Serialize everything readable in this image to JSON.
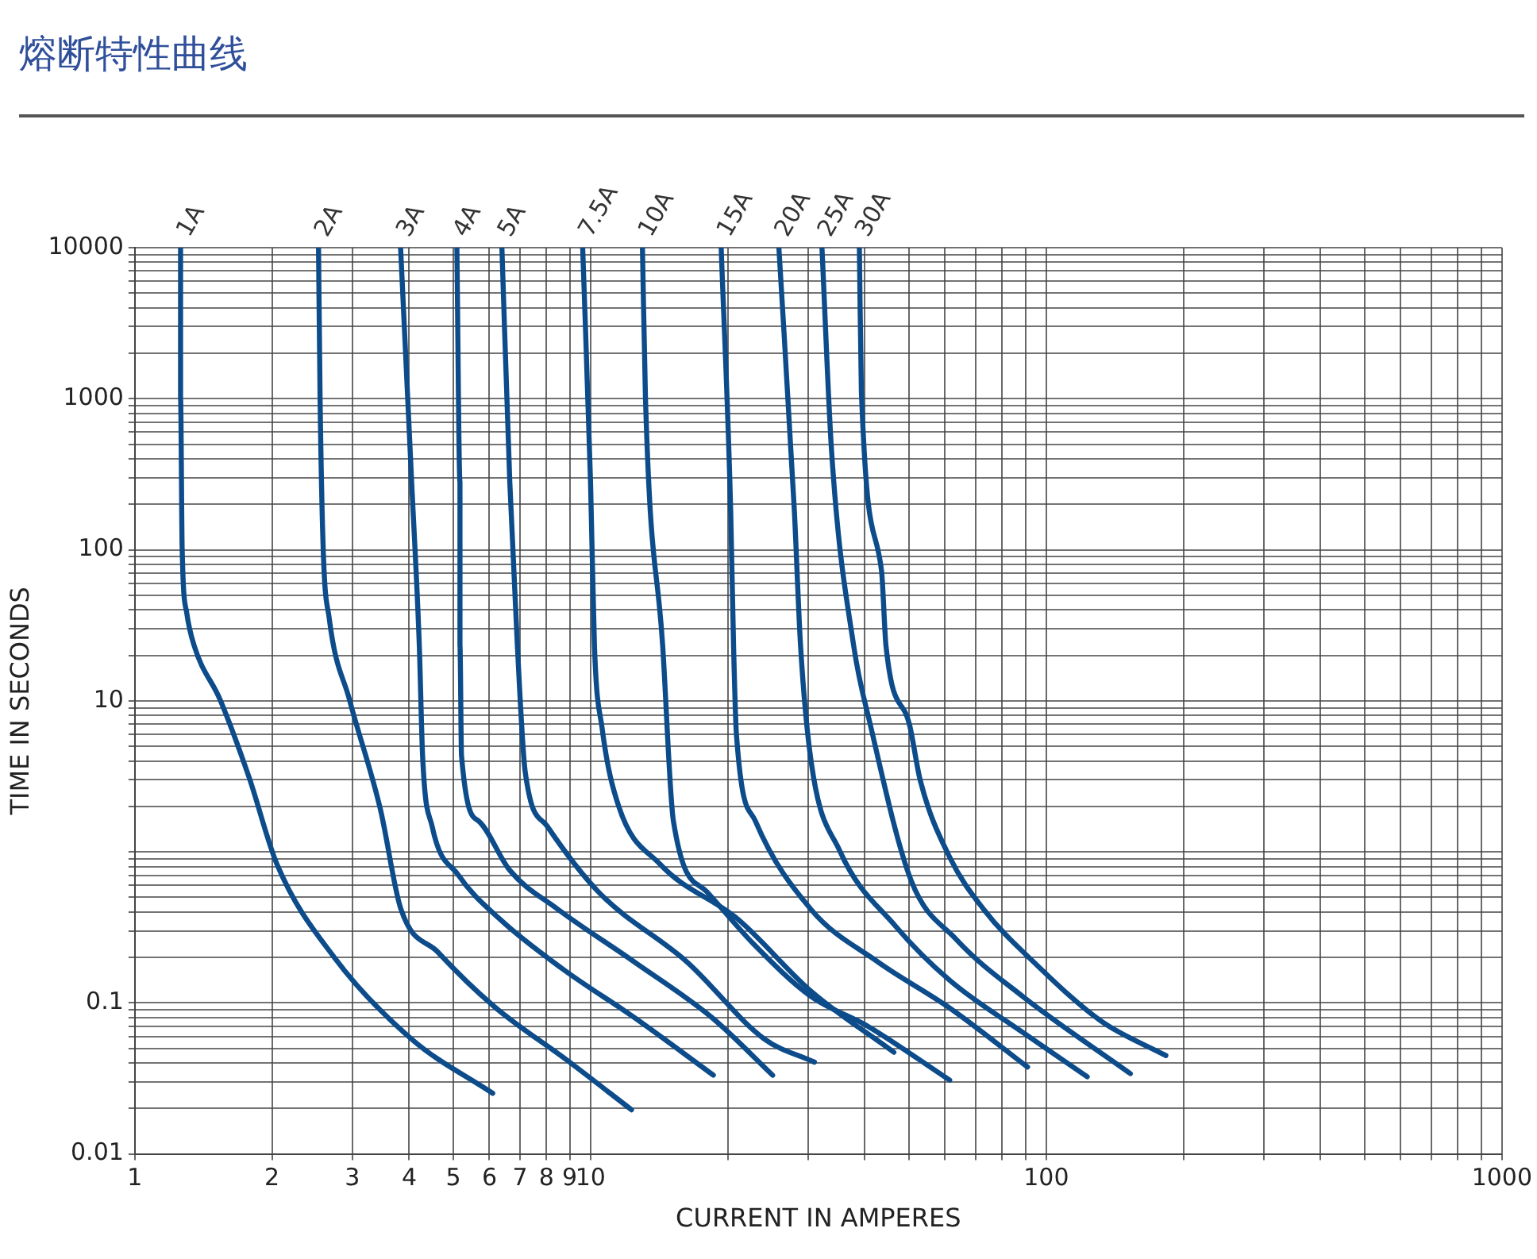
{
  "chart_data": {
    "type": "line",
    "title": "熔断特性曲线",
    "xlabel": "CURRENT IN AMPERES",
    "ylabel": "TIME IN SECONDS",
    "log": "xy",
    "grid": true,
    "legend": false,
    "xlim": [
      1,
      1000
    ],
    "ylim": [
      0.01,
      10000
    ],
    "xticks": [
      1,
      2,
      3,
      4,
      5,
      6,
      7,
      8,
      9,
      10,
      {
        "value": 20,
        "label": null
      },
      {
        "value": 30,
        "label": null
      },
      {
        "value": 40,
        "label": null
      },
      {
        "value": 50,
        "label": null
      },
      {
        "value": 60,
        "label": null
      },
      {
        "value": 70,
        "label": null
      },
      {
        "value": 80,
        "label": null
      },
      {
        "value": 90,
        "label": null
      },
      100,
      {
        "value": 200,
        "label": null
      },
      {
        "value": 300,
        "label": null
      },
      {
        "value": 400,
        "label": null
      },
      {
        "value": 500,
        "label": null
      },
      {
        "value": 600,
        "label": null
      },
      {
        "value": 700,
        "label": null
      },
      {
        "value": 800,
        "label": null
      },
      {
        "value": 900,
        "label": null
      },
      1000
    ],
    "yticks": [
      0.01,
      {
        "value": 0.02,
        "label": null
      },
      {
        "value": 0.03,
        "label": null
      },
      {
        "value": 0.04,
        "label": null
      },
      {
        "value": 0.05,
        "label": null
      },
      {
        "value": 0.06,
        "label": null
      },
      {
        "value": 0.07,
        "label": null
      },
      {
        "value": 0.08,
        "label": null
      },
      {
        "value": 0.09,
        "label": null
      },
      0.1,
      {
        "value": 0.2,
        "label": null
      },
      {
        "value": 0.3,
        "label": null
      },
      {
        "value": 0.4,
        "label": null
      },
      {
        "value": 0.5,
        "label": null
      },
      {
        "value": 0.6,
        "label": null
      },
      {
        "value": 0.7,
        "label": null
      },
      {
        "value": 0.8,
        "label": null
      },
      {
        "value": 0.9,
        "label": null
      },
      {
        "value": 1,
        "label": null
      },
      {
        "value": 2,
        "label": null
      },
      {
        "value": 3,
        "label": null
      },
      {
        "value": 4,
        "label": null
      },
      {
        "value": 5,
        "label": null
      },
      {
        "value": 6,
        "label": null
      },
      {
        "value": 7,
        "label": null
      },
      {
        "value": 8,
        "label": null
      },
      {
        "value": 9,
        "label": null
      },
      10,
      {
        "value": 20,
        "label": null
      },
      {
        "value": 30,
        "label": null
      },
      {
        "value": 40,
        "label": null
      },
      {
        "value": 50,
        "label": null
      },
      {
        "value": 60,
        "label": null
      },
      {
        "value": 70,
        "label": null
      },
      {
        "value": 80,
        "label": null
      },
      {
        "value": 90,
        "label": null
      },
      100,
      {
        "value": 200,
        "label": null
      },
      {
        "value": 300,
        "label": null
      },
      {
        "value": 400,
        "label": null
      },
      {
        "value": 500,
        "label": null
      },
      {
        "value": 600,
        "label": null
      },
      {
        "value": 700,
        "label": null
      },
      {
        "value": 800,
        "label": null
      },
      {
        "value": 900,
        "label": null
      },
      1000,
      {
        "value": 2000,
        "label": null
      },
      {
        "value": 3000,
        "label": null
      },
      {
        "value": 4000,
        "label": null
      },
      {
        "value": 5000,
        "label": null
      },
      {
        "value": 6000,
        "label": null
      },
      {
        "value": 7000,
        "label": null
      },
      {
        "value": 8000,
        "label": null
      },
      {
        "value": 9000,
        "label": null
      },
      10000
    ],
    "series": [
      {
        "name": "1A",
        "color": "#0d4c8b",
        "x": [
          1.26,
          1.26,
          1.27,
          1.3,
          1.35,
          1.54,
          1.78,
          2.05,
          2.74,
          4.05,
          6.1
        ],
        "values": [
          10000,
          1000,
          103,
          38.1,
          23.1,
          10.1,
          3.13,
          0.83,
          0.2,
          0.0575,
          0.0252
        ]
      },
      {
        "name": "2A",
        "color": "#0d4c8b",
        "x": [
          2.53,
          2.55,
          2.59,
          2.67,
          2.96,
          3.46,
          3.83,
          4.63,
          6.14,
          8.89,
          12.3
        ],
        "values": [
          10000,
          1000,
          103,
          35.3,
          10.1,
          1.9,
          0.424,
          0.216,
          0.0948,
          0.0416,
          0.0196
        ]
      },
      {
        "name": "3A",
        "color": "#0d4c8b",
        "x": [
          3.83,
          4.05,
          4.21,
          4.28,
          4.49,
          5.13,
          6.34,
          8.68,
          12.5,
          18.6
        ],
        "values": [
          10000,
          281,
          23.1,
          4.34,
          1.48,
          0.7,
          0.356,
          0.168,
          0.0796,
          0.0332
        ]
      },
      {
        "name": "4A",
        "color": "#0d4c8b",
        "x": [
          5.09,
          5.17,
          5.17,
          5.21,
          5.68,
          6.65,
          8.41,
          12.5,
          18.5,
          25.1
        ],
        "values": [
          10000,
          281,
          23.1,
          4.34,
          1.6,
          0.754,
          0.424,
          0.186,
          0.0796,
          0.0332
        ]
      },
      {
        "name": "5A",
        "color": "#0d4c8b",
        "x": [
          6.39,
          6.65,
          6.91,
          7.19,
          8.03,
          10.4,
          16.3,
          24.1,
          31
        ],
        "values": [
          10000,
          281,
          23.1,
          3.37,
          1.48,
          0.544,
          0.186,
          0.0575,
          0.0405
        ]
      },
      {
        "name": "7.5A",
        "color": "#0d4c8b",
        "x": [
          9.61,
          10,
          10.2,
          10.6,
          11.5,
          14.2,
          21.1,
          30.5,
          46.3
        ],
        "values": [
          10000,
          281,
          23.1,
          6.62,
          2.05,
          0.83,
          0.356,
          0.119,
          0.0471
        ]
      },
      {
        "name": "10A",
        "color": "#0d4c8b",
        "x": [
          13,
          13.2,
          14.4,
          15.2,
          18,
          22.8,
          30.5,
          40.5,
          61.4
        ],
        "values": [
          10000,
          1000,
          23.1,
          1.6,
          0.544,
          0.245,
          0.11,
          0.0703,
          0.0308
        ]
      },
      {
        "name": "15A",
        "color": "#0d4c8b",
        "x": [
          19.35,
          20.3,
          20.6,
          20.9,
          23,
          30.5,
          42.8,
          61.4,
          91
        ],
        "values": [
          10000,
          184,
          23.1,
          6,
          1.6,
          0.414,
          0.186,
          0.0925,
          0.0376
        ]
      },
      {
        "name": "20A",
        "color": "#0d4c8b",
        "x": [
          25.9,
          28,
          28.9,
          30.5,
          35.2,
          46.7,
          61.4,
          88.9,
          123
        ],
        "values": [
          10000,
          184,
          23.1,
          3.92,
          1.02,
          0.322,
          0.141,
          0.0636,
          0.0324
        ]
      },
      {
        "name": "25A",
        "color": "#0d4c8b",
        "x": [
          32.2,
          33.8,
          37.8,
          41.1,
          50.5,
          63.4,
          88.9,
          153
        ],
        "values": [
          10000,
          452,
          23.1,
          6.97,
          0.648,
          0.264,
          0.11,
          0.034
        ]
      },
      {
        "name": "30A",
        "color": "#0d4c8b",
        "x": [
          38.9,
          39.3,
          43.5,
          44.5,
          50.1,
          52.9,
          61.4,
          73,
          93.9,
          132,
          183
        ],
        "values": [
          10000,
          1110,
          72.9,
          23.1,
          6.97,
          2.98,
          0.92,
          0.414,
          0.186,
          0.0757,
          0.0448
        ]
      }
    ]
  }
}
